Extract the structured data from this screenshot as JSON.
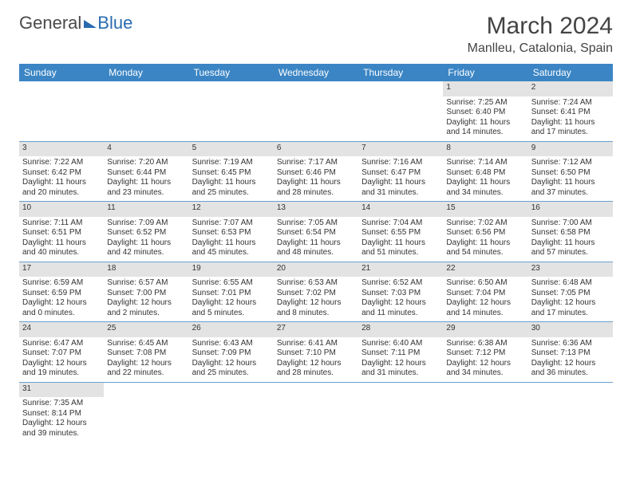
{
  "logo": {
    "part1": "General",
    "part2": "Blue"
  },
  "title": "March 2024",
  "location": "Manlleu, Catalonia, Spain",
  "weekdays": [
    "Sunday",
    "Monday",
    "Tuesday",
    "Wednesday",
    "Thursday",
    "Friday",
    "Saturday"
  ],
  "colors": {
    "header_bg": "#3b85c4",
    "daynum_bg": "#e3e3e3",
    "rule": "#6aa0d0",
    "text": "#333333",
    "logo_blue": "#2a6bb0"
  },
  "weeks": [
    [
      null,
      null,
      null,
      null,
      null,
      {
        "n": "1",
        "sr": "7:25 AM",
        "ss": "6:40 PM",
        "dlh": "11",
        "dlm": "14"
      },
      {
        "n": "2",
        "sr": "7:24 AM",
        "ss": "6:41 PM",
        "dlh": "11",
        "dlm": "17"
      }
    ],
    [
      {
        "n": "3",
        "sr": "7:22 AM",
        "ss": "6:42 PM",
        "dlh": "11",
        "dlm": "20"
      },
      {
        "n": "4",
        "sr": "7:20 AM",
        "ss": "6:44 PM",
        "dlh": "11",
        "dlm": "23"
      },
      {
        "n": "5",
        "sr": "7:19 AM",
        "ss": "6:45 PM",
        "dlh": "11",
        "dlm": "25"
      },
      {
        "n": "6",
        "sr": "7:17 AM",
        "ss": "6:46 PM",
        "dlh": "11",
        "dlm": "28"
      },
      {
        "n": "7",
        "sr": "7:16 AM",
        "ss": "6:47 PM",
        "dlh": "11",
        "dlm": "31"
      },
      {
        "n": "8",
        "sr": "7:14 AM",
        "ss": "6:48 PM",
        "dlh": "11",
        "dlm": "34"
      },
      {
        "n": "9",
        "sr": "7:12 AM",
        "ss": "6:50 PM",
        "dlh": "11",
        "dlm": "37"
      }
    ],
    [
      {
        "n": "10",
        "sr": "7:11 AM",
        "ss": "6:51 PM",
        "dlh": "11",
        "dlm": "40"
      },
      {
        "n": "11",
        "sr": "7:09 AM",
        "ss": "6:52 PM",
        "dlh": "11",
        "dlm": "42"
      },
      {
        "n": "12",
        "sr": "7:07 AM",
        "ss": "6:53 PM",
        "dlh": "11",
        "dlm": "45"
      },
      {
        "n": "13",
        "sr": "7:05 AM",
        "ss": "6:54 PM",
        "dlh": "11",
        "dlm": "48"
      },
      {
        "n": "14",
        "sr": "7:04 AM",
        "ss": "6:55 PM",
        "dlh": "11",
        "dlm": "51"
      },
      {
        "n": "15",
        "sr": "7:02 AM",
        "ss": "6:56 PM",
        "dlh": "11",
        "dlm": "54"
      },
      {
        "n": "16",
        "sr": "7:00 AM",
        "ss": "6:58 PM",
        "dlh": "11",
        "dlm": "57"
      }
    ],
    [
      {
        "n": "17",
        "sr": "6:59 AM",
        "ss": "6:59 PM",
        "dlh": "12",
        "dlm": "0"
      },
      {
        "n": "18",
        "sr": "6:57 AM",
        "ss": "7:00 PM",
        "dlh": "12",
        "dlm": "2"
      },
      {
        "n": "19",
        "sr": "6:55 AM",
        "ss": "7:01 PM",
        "dlh": "12",
        "dlm": "5"
      },
      {
        "n": "20",
        "sr": "6:53 AM",
        "ss": "7:02 PM",
        "dlh": "12",
        "dlm": "8"
      },
      {
        "n": "21",
        "sr": "6:52 AM",
        "ss": "7:03 PM",
        "dlh": "12",
        "dlm": "11"
      },
      {
        "n": "22",
        "sr": "6:50 AM",
        "ss": "7:04 PM",
        "dlh": "12",
        "dlm": "14"
      },
      {
        "n": "23",
        "sr": "6:48 AM",
        "ss": "7:05 PM",
        "dlh": "12",
        "dlm": "17"
      }
    ],
    [
      {
        "n": "24",
        "sr": "6:47 AM",
        "ss": "7:07 PM",
        "dlh": "12",
        "dlm": "19"
      },
      {
        "n": "25",
        "sr": "6:45 AM",
        "ss": "7:08 PM",
        "dlh": "12",
        "dlm": "22"
      },
      {
        "n": "26",
        "sr": "6:43 AM",
        "ss": "7:09 PM",
        "dlh": "12",
        "dlm": "25"
      },
      {
        "n": "27",
        "sr": "6:41 AM",
        "ss": "7:10 PM",
        "dlh": "12",
        "dlm": "28"
      },
      {
        "n": "28",
        "sr": "6:40 AM",
        "ss": "7:11 PM",
        "dlh": "12",
        "dlm": "31"
      },
      {
        "n": "29",
        "sr": "6:38 AM",
        "ss": "7:12 PM",
        "dlh": "12",
        "dlm": "34"
      },
      {
        "n": "30",
        "sr": "6:36 AM",
        "ss": "7:13 PM",
        "dlh": "12",
        "dlm": "36"
      }
    ],
    [
      {
        "n": "31",
        "sr": "7:35 AM",
        "ss": "8:14 PM",
        "dlh": "12",
        "dlm": "39"
      },
      null,
      null,
      null,
      null,
      null,
      null
    ]
  ],
  "labels": {
    "sunrise": "Sunrise: ",
    "sunset": "Sunset: ",
    "daylight_pre": "Daylight: ",
    "hours_word": " hours",
    "and_word": "and ",
    "minutes_word": " minutes."
  }
}
